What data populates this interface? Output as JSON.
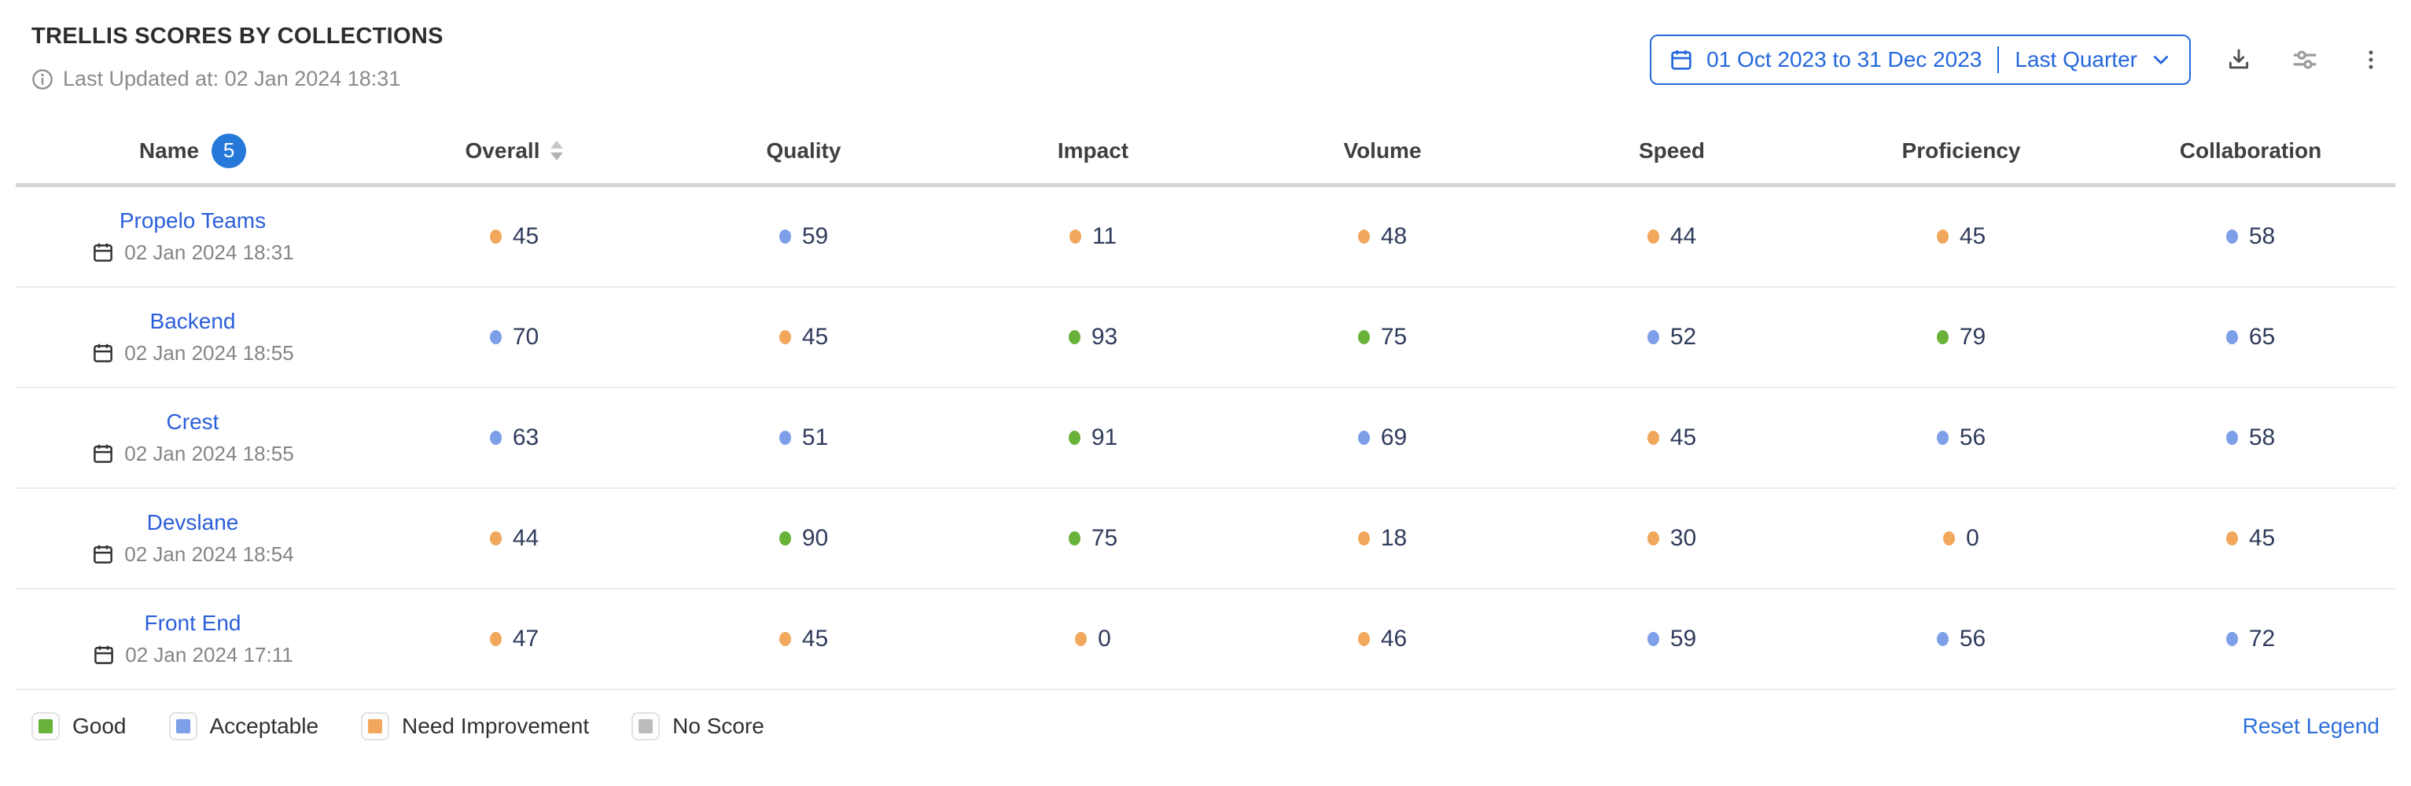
{
  "widget": {
    "title": "TRELLIS SCORES BY COLLECTIONS",
    "last_updated": "Last Updated at: 02 Jan 2024 18:31"
  },
  "toolbar": {
    "date_range": "01 Oct 2023 to 31 Dec 2023",
    "preset": "Last Quarter",
    "icons": {
      "calendar": "calendar-icon",
      "chevron": "chevron-down-icon",
      "download": "download-icon",
      "settings": "sliders-icon",
      "more": "kebab-menu-icon",
      "info": "info-icon",
      "sort": "sort-carets-icon",
      "row_calendar": "calendar-icon"
    }
  },
  "table": {
    "columns": [
      {
        "label": "Name",
        "badge": "5"
      },
      {
        "label": "Overall",
        "sortable": true
      },
      {
        "label": "Quality"
      },
      {
        "label": "Impact"
      },
      {
        "label": "Volume"
      },
      {
        "label": "Speed"
      },
      {
        "label": "Proficiency"
      },
      {
        "label": "Collaboration"
      }
    ],
    "rows": [
      {
        "name": "Propelo Teams",
        "date": "02 Jan 2024 18:31",
        "scores": [
          {
            "value": "45",
            "level": "need_improvement"
          },
          {
            "value": "59",
            "level": "acceptable"
          },
          {
            "value": "11",
            "level": "need_improvement"
          },
          {
            "value": "48",
            "level": "need_improvement"
          },
          {
            "value": "44",
            "level": "need_improvement"
          },
          {
            "value": "45",
            "level": "need_improvement"
          },
          {
            "value": "58",
            "level": "acceptable"
          }
        ]
      },
      {
        "name": "Backend",
        "date": "02 Jan 2024 18:55",
        "scores": [
          {
            "value": "70",
            "level": "acceptable"
          },
          {
            "value": "45",
            "level": "need_improvement"
          },
          {
            "value": "93",
            "level": "good"
          },
          {
            "value": "75",
            "level": "good"
          },
          {
            "value": "52",
            "level": "acceptable"
          },
          {
            "value": "79",
            "level": "good"
          },
          {
            "value": "65",
            "level": "acceptable"
          }
        ]
      },
      {
        "name": "Crest",
        "date": "02 Jan 2024 18:55",
        "scores": [
          {
            "value": "63",
            "level": "acceptable"
          },
          {
            "value": "51",
            "level": "acceptable"
          },
          {
            "value": "91",
            "level": "good"
          },
          {
            "value": "69",
            "level": "acceptable"
          },
          {
            "value": "45",
            "level": "need_improvement"
          },
          {
            "value": "56",
            "level": "acceptable"
          },
          {
            "value": "58",
            "level": "acceptable"
          }
        ]
      },
      {
        "name": "Devslane",
        "date": "02 Jan 2024 18:54",
        "scores": [
          {
            "value": "44",
            "level": "need_improvement"
          },
          {
            "value": "90",
            "level": "good"
          },
          {
            "value": "75",
            "level": "good"
          },
          {
            "value": "18",
            "level": "need_improvement"
          },
          {
            "value": "30",
            "level": "need_improvement"
          },
          {
            "value": "0",
            "level": "need_improvement"
          },
          {
            "value": "45",
            "level": "need_improvement"
          }
        ]
      },
      {
        "name": "Front End",
        "date": "02 Jan 2024 17:11",
        "scores": [
          {
            "value": "47",
            "level": "need_improvement"
          },
          {
            "value": "45",
            "level": "need_improvement"
          },
          {
            "value": "0",
            "level": "need_improvement"
          },
          {
            "value": "46",
            "level": "need_improvement"
          },
          {
            "value": "59",
            "level": "acceptable"
          },
          {
            "value": "56",
            "level": "acceptable"
          },
          {
            "value": "72",
            "level": "acceptable"
          }
        ]
      }
    ]
  },
  "legend": {
    "items": [
      {
        "label": "Good",
        "level": "good"
      },
      {
        "label": "Acceptable",
        "level": "acceptable"
      },
      {
        "label": "Need Improvement",
        "level": "need_improvement"
      },
      {
        "label": "No Score",
        "level": "no_score"
      }
    ],
    "reset_label": "Reset Legend"
  },
  "colors": {
    "good": "#68b23a",
    "acceptable": "#7d9fe8",
    "need_improvement": "#f1a85d",
    "no_score": "#bcbcbc",
    "accent_blue": "#2468dc",
    "link_blue": "#2b5fd9"
  }
}
